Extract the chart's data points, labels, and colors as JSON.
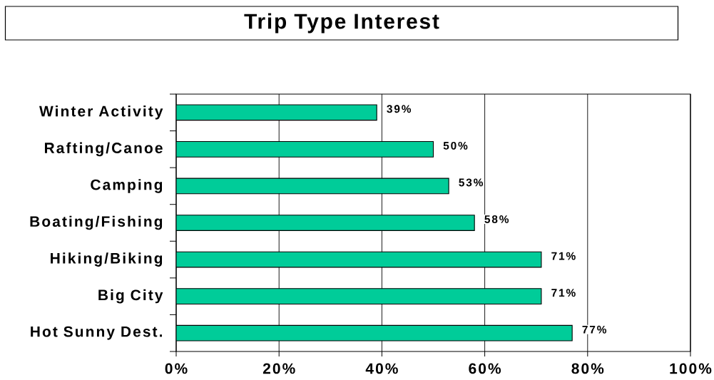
{
  "chart_data": {
    "type": "bar",
    "orientation": "horizontal",
    "title": "Trip Type Interest",
    "categories": [
      "Winter Activity",
      "Rafting/Canoe",
      "Camping",
      "Boating/Fishing",
      "Hiking/Biking",
      "Big City",
      "Hot Sunny Dest."
    ],
    "values": [
      39,
      50,
      53,
      58,
      71,
      71,
      77
    ],
    "value_labels": [
      "39%",
      "50%",
      "53%",
      "58%",
      "71%",
      "71%",
      "77%"
    ],
    "color": "#00cc99",
    "xlim": [
      0,
      100
    ],
    "xticks": [
      {
        "value": 0,
        "label": "0%"
      },
      {
        "value": 20,
        "label": "20%"
      },
      {
        "value": 40,
        "label": "40%"
      },
      {
        "value": 60,
        "label": "60%"
      },
      {
        "value": 80,
        "label": "80%"
      },
      {
        "value": 100,
        "label": "100%"
      }
    ],
    "grid": "x"
  }
}
